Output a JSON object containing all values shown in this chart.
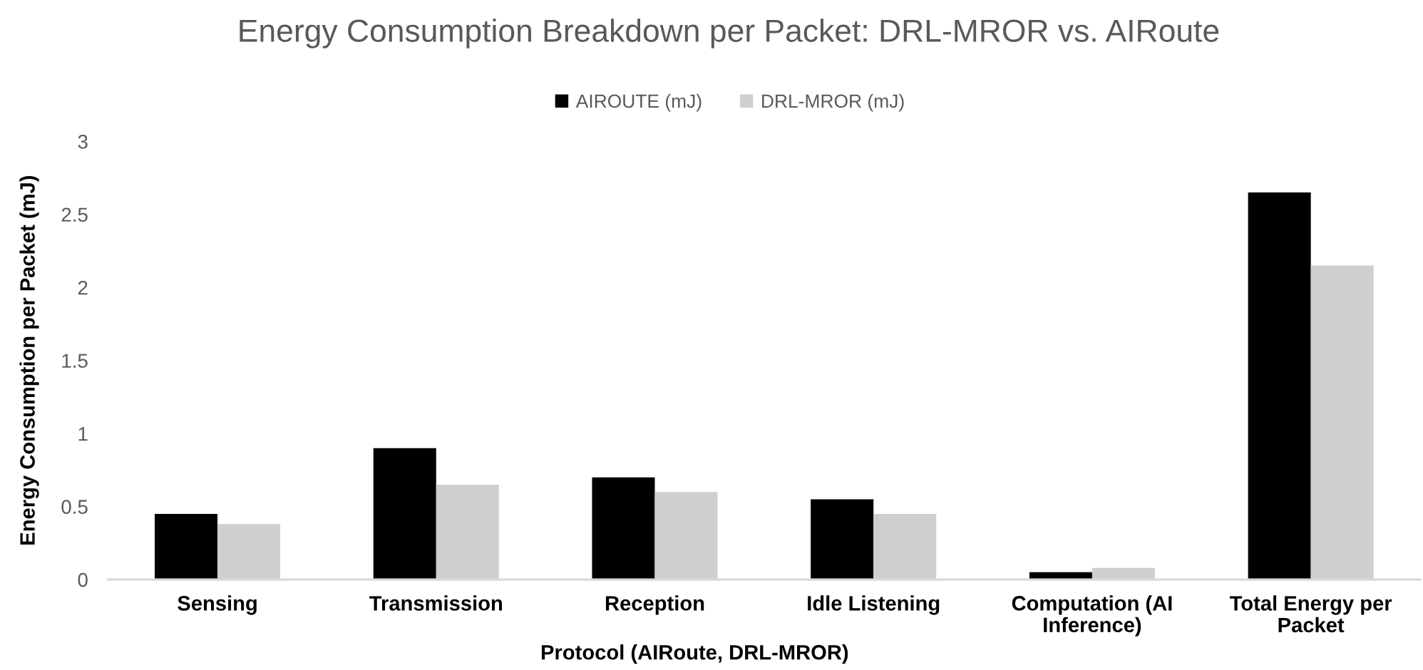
{
  "chart_data": {
    "type": "bar",
    "title": "Energy Consumption Breakdown per Packet: DRL-MROR vs. AIRoute",
    "xlabel": "Protocol (AIRoute, DRL-MROR)",
    "ylabel": "Energy Consumption per Packet (mJ)",
    "categories": [
      "Sensing",
      "Transmission",
      "Reception",
      "Idle Listening",
      "Computation (AI Inference)",
      "Total Energy per Packet"
    ],
    "series": [
      {
        "name": "AIROUTE (mJ)",
        "color": "#000000",
        "values": [
          0.45,
          0.9,
          0.7,
          0.55,
          0.05,
          2.65
        ]
      },
      {
        "name": "DRL-MROR (mJ)",
        "color": "#d0cece",
        "values": [
          0.38,
          0.65,
          0.6,
          0.45,
          0.08,
          2.15
        ]
      }
    ],
    "ylim": [
      0,
      3
    ],
    "yticks": [
      0,
      0.5,
      1,
      1.5,
      2,
      2.5,
      3
    ],
    "grid": false,
    "legend": "top"
  }
}
